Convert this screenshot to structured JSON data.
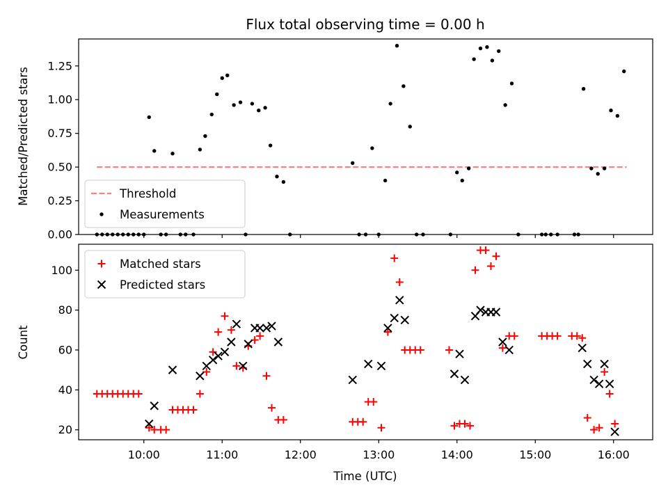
{
  "chart_data": [
    {
      "type": "scatter",
      "title": "Flux total observing time = 0.00 h",
      "ylabel": "Matched/Predicted stars",
      "xlabel": "",
      "xlim": [
        "09:10",
        "16:30"
      ],
      "ylim": [
        0,
        1.45
      ],
      "yticks": [
        0,
        0.25,
        0.5,
        0.75,
        1.0,
        1.25
      ],
      "ytick_labels": [
        "0.00",
        "0.25",
        "0.50",
        "0.75",
        "1.00",
        "1.25"
      ],
      "xticks": [
        "10:00",
        "11:00",
        "12:00",
        "13:00",
        "14:00",
        "15:00",
        "16:00"
      ],
      "show_xtick_labels": false,
      "legend_position": "lower-left",
      "series": [
        {
          "name": "Threshold",
          "kind": "dashed-line",
          "color": "#ff7f7f",
          "points": [
            [
              "09:24",
              0.5
            ],
            [
              "16:10",
              0.5
            ]
          ]
        },
        {
          "name": "Measurements",
          "kind": "dot",
          "color": "#000000",
          "points": [
            [
              "09:24",
              0
            ],
            [
              "09:28",
              0
            ],
            [
              "09:32",
              0
            ],
            [
              "09:36",
              0
            ],
            [
              "09:40",
              0
            ],
            [
              "09:44",
              0
            ],
            [
              "09:48",
              0
            ],
            [
              "09:52",
              0
            ],
            [
              "09:56",
              0
            ],
            [
              "10:00",
              0
            ],
            [
              "10:04",
              0.87
            ],
            [
              "10:08",
              0.62
            ],
            [
              "10:13",
              0
            ],
            [
              "10:17",
              0
            ],
            [
              "10:22",
              0.6
            ],
            [
              "10:28",
              0
            ],
            [
              "10:32",
              0
            ],
            [
              "10:38",
              0
            ],
            [
              "10:43",
              0.63
            ],
            [
              "10:47",
              0.73
            ],
            [
              "10:52",
              0.89
            ],
            [
              "10:56",
              1.04
            ],
            [
              "11:00",
              1.16
            ],
            [
              "11:04",
              1.18
            ],
            [
              "11:09",
              0.96
            ],
            [
              "11:14",
              0.98
            ],
            [
              "11:18",
              0
            ],
            [
              "11:23",
              0.97
            ],
            [
              "11:28",
              0.92
            ],
            [
              "11:33",
              0.94
            ],
            [
              "11:37",
              0.66
            ],
            [
              "11:42",
              0.43
            ],
            [
              "11:47",
              0.39
            ],
            [
              "11:52",
              0
            ],
            [
              "12:40",
              0.53
            ],
            [
              "12:45",
              0
            ],
            [
              "12:50",
              0
            ],
            [
              "12:55",
              0.64
            ],
            [
              "13:00",
              0
            ],
            [
              "13:05",
              0.4
            ],
            [
              "13:09",
              0.97
            ],
            [
              "13:14",
              1.4
            ],
            [
              "13:19",
              1.1
            ],
            [
              "13:24",
              0.8
            ],
            [
              "13:29",
              0
            ],
            [
              "13:34",
              0
            ],
            [
              "13:55",
              0
            ],
            [
              "14:00",
              0.46
            ],
            [
              "14:04",
              0.4
            ],
            [
              "14:09",
              0.49
            ],
            [
              "14:13",
              1.3
            ],
            [
              "14:18",
              1.38
            ],
            [
              "14:23",
              1.39
            ],
            [
              "14:27",
              1.29
            ],
            [
              "14:32",
              1.36
            ],
            [
              "14:37",
              0.96
            ],
            [
              "14:42",
              1.12
            ],
            [
              "14:47",
              0
            ],
            [
              "15:05",
              0
            ],
            [
              "15:08",
              0
            ],
            [
              "15:12",
              0
            ],
            [
              "15:17",
              0
            ],
            [
              "15:30",
              0
            ],
            [
              "15:33",
              0
            ],
            [
              "15:37",
              1.08
            ],
            [
              "15:43",
              0.49
            ],
            [
              "15:48",
              0.45
            ],
            [
              "15:53",
              0.49
            ],
            [
              "15:58",
              0.92
            ],
            [
              "16:03",
              0.88
            ],
            [
              "16:08",
              1.21
            ]
          ]
        }
      ]
    },
    {
      "type": "scatter",
      "title": "",
      "ylabel": "Count",
      "xlabel": "Time (UTC)",
      "xlim": [
        "09:10",
        "16:30"
      ],
      "ylim": [
        15,
        113
      ],
      "yticks": [
        20,
        40,
        60,
        80,
        100
      ],
      "ytick_labels": [
        "20",
        "40",
        "60",
        "80",
        "100"
      ],
      "xticks": [
        "10:00",
        "11:00",
        "12:00",
        "13:00",
        "14:00",
        "15:00",
        "16:00"
      ],
      "xtick_labels": [
        "10:00",
        "11:00",
        "12:00",
        "13:00",
        "14:00",
        "15:00",
        "16:00"
      ],
      "legend_position": "upper-left",
      "series": [
        {
          "name": "Matched stars",
          "kind": "plus",
          "color": "#ff0000",
          "points": [
            [
              "09:24",
              38
            ],
            [
              "09:28",
              38
            ],
            [
              "09:32",
              38
            ],
            [
              "09:36",
              38
            ],
            [
              "09:40",
              38
            ],
            [
              "09:44",
              38
            ],
            [
              "09:48",
              38
            ],
            [
              "09:52",
              38
            ],
            [
              "09:56",
              38
            ],
            [
              "10:04",
              21
            ],
            [
              "10:08",
              20
            ],
            [
              "10:13",
              20
            ],
            [
              "10:17",
              20
            ],
            [
              "10:22",
              30
            ],
            [
              "10:26",
              30
            ],
            [
              "10:30",
              30
            ],
            [
              "10:34",
              30
            ],
            [
              "10:38",
              30
            ],
            [
              "10:43",
              38
            ],
            [
              "10:48",
              49
            ],
            [
              "10:53",
              59
            ],
            [
              "10:57",
              69
            ],
            [
              "11:02",
              77
            ],
            [
              "11:07",
              70
            ],
            [
              "11:11",
              52
            ],
            [
              "11:16",
              51
            ],
            [
              "11:20",
              62
            ],
            [
              "11:25",
              65
            ],
            [
              "11:29",
              67
            ],
            [
              "11:34",
              47
            ],
            [
              "11:38",
              31
            ],
            [
              "11:43",
              25
            ],
            [
              "11:47",
              25
            ],
            [
              "12:40",
              24
            ],
            [
              "12:44",
              24
            ],
            [
              "12:48",
              24
            ],
            [
              "12:52",
              34
            ],
            [
              "12:56",
              34
            ],
            [
              "13:02",
              21
            ],
            [
              "13:07",
              69
            ],
            [
              "13:12",
              106
            ],
            [
              "13:16",
              94
            ],
            [
              "13:20",
              60
            ],
            [
              "13:24",
              60
            ],
            [
              "13:28",
              60
            ],
            [
              "13:32",
              60
            ],
            [
              "13:54",
              60
            ],
            [
              "13:58",
              22
            ],
            [
              "14:02",
              23
            ],
            [
              "14:06",
              23
            ],
            [
              "14:10",
              22
            ],
            [
              "14:14",
              100
            ],
            [
              "14:18",
              110
            ],
            [
              "14:22",
              110
            ],
            [
              "14:26",
              102
            ],
            [
              "14:30",
              107
            ],
            [
              "14:35",
              61
            ],
            [
              "14:40",
              67
            ],
            [
              "14:44",
              67
            ],
            [
              "15:05",
              67
            ],
            [
              "15:09",
              67
            ],
            [
              "15:13",
              67
            ],
            [
              "15:17",
              67
            ],
            [
              "15:28",
              67
            ],
            [
              "15:32",
              67
            ],
            [
              "15:36",
              66
            ],
            [
              "15:40",
              26
            ],
            [
              "15:45",
              20
            ],
            [
              "15:49",
              21
            ],
            [
              "15:53",
              49
            ],
            [
              "15:57",
              38
            ],
            [
              "16:01",
              23
            ]
          ]
        },
        {
          "name": "Predicted stars",
          "kind": "cross",
          "color": "#000000",
          "points": [
            [
              "10:04",
              23
            ],
            [
              "10:08",
              32
            ],
            [
              "10:22",
              50
            ],
            [
              "10:43",
              47
            ],
            [
              "10:48",
              52
            ],
            [
              "10:53",
              55
            ],
            [
              "10:57",
              57
            ],
            [
              "11:02",
              59
            ],
            [
              "11:07",
              64
            ],
            [
              "11:11",
              73
            ],
            [
              "11:16",
              52
            ],
            [
              "11:20",
              63
            ],
            [
              "11:25",
              71
            ],
            [
              "11:29",
              71
            ],
            [
              "11:34",
              71
            ],
            [
              "11:38",
              72
            ],
            [
              "11:43",
              64
            ],
            [
              "12:40",
              45
            ],
            [
              "12:52",
              53
            ],
            [
              "13:02",
              52
            ],
            [
              "13:07",
              71
            ],
            [
              "13:12",
              76
            ],
            [
              "13:16",
              85
            ],
            [
              "13:20",
              75
            ],
            [
              "13:58",
              48
            ],
            [
              "14:02",
              58
            ],
            [
              "14:06",
              45
            ],
            [
              "14:14",
              77
            ],
            [
              "14:18",
              80
            ],
            [
              "14:22",
              79
            ],
            [
              "14:26",
              79
            ],
            [
              "14:30",
              79
            ],
            [
              "14:35",
              64
            ],
            [
              "14:40",
              60
            ],
            [
              "15:36",
              61
            ],
            [
              "15:40",
              53
            ],
            [
              "15:45",
              45
            ],
            [
              "15:49",
              43
            ],
            [
              "15:53",
              53
            ],
            [
              "15:57",
              43
            ],
            [
              "16:01",
              19
            ]
          ]
        }
      ]
    }
  ]
}
